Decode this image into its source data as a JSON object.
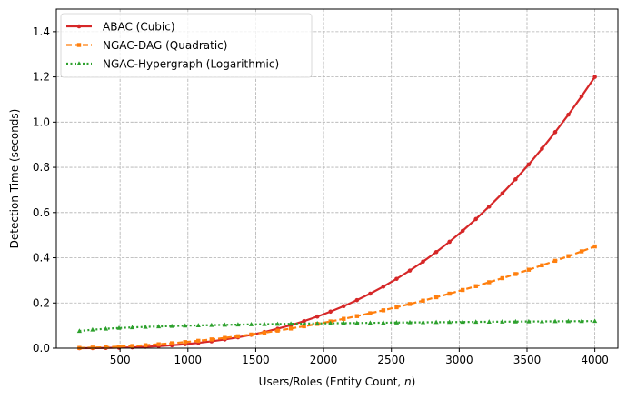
{
  "chart_data": {
    "type": "line",
    "title": "",
    "xlabel_prefix": "Users/Roles (Entity Count, ",
    "xlabel_var": "n",
    "xlabel_suffix": ")",
    "ylabel": "Detection Time (seconds)",
    "xlim": [
      30,
      4170
    ],
    "ylim": [
      0,
      1.5
    ],
    "xticks": [
      500,
      1000,
      1500,
      2000,
      2500,
      3000,
      3500,
      4000
    ],
    "yticks": [
      0.0,
      0.2,
      0.4,
      0.6,
      0.8,
      1.0,
      1.2,
      1.4
    ],
    "xtick_labels": [
      "500",
      "1000",
      "1500",
      "2000",
      "2500",
      "3000",
      "3500",
      "4000"
    ],
    "ytick_labels": [
      "0.0",
      "0.2",
      "0.4",
      "0.6",
      "0.8",
      "1.0",
      "1.2",
      "1.4"
    ],
    "grid": true,
    "legend_position": "top-left",
    "x_range": [
      200,
      4000
    ],
    "points_per_series": 40,
    "series": [
      {
        "name": "ABAC (Cubic)",
        "color": "#d62728",
        "marker": "circle",
        "linestyle": "solid",
        "model": "cubic",
        "y_at_start": 0.0001,
        "y_at_end": 1.2
      },
      {
        "name": "NGAC-DAG (Quadratic)",
        "color": "#ff7f0e",
        "marker": "square",
        "linestyle": "dashed",
        "model": "quadratic",
        "y_at_start": 0.0011,
        "y_at_end": 0.45
      },
      {
        "name": "NGAC-Hypergraph (Logarithmic)",
        "color": "#2ca02c",
        "marker": "triangle",
        "linestyle": "dotted",
        "model": "logarithmic",
        "y_at_start": 0.076,
        "y_at_end": 0.12
      }
    ]
  }
}
